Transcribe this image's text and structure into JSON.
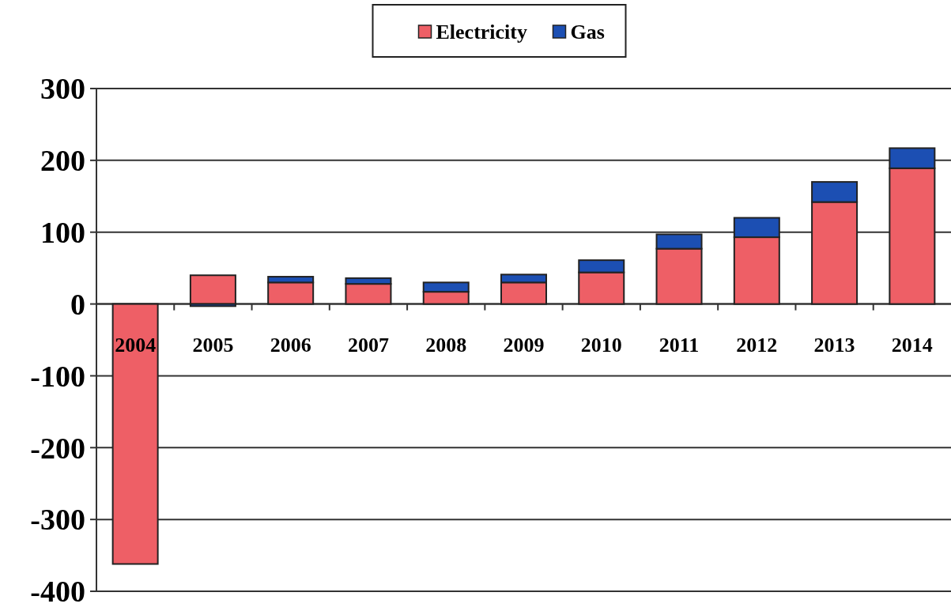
{
  "chart_data": {
    "type": "bar",
    "stacked": true,
    "categories": [
      "2004",
      "2005",
      "2006",
      "2007",
      "2008",
      "2009",
      "2010",
      "2011",
      "2012",
      "2013",
      "2014"
    ],
    "series": [
      {
        "name": "Electricity",
        "color": "#ee5f66",
        "values": [
          -362,
          40,
          30,
          28,
          17,
          30,
          44,
          77,
          93,
          142,
          189
        ]
      },
      {
        "name": "Gas",
        "color": "#1c4fb3",
        "values": [
          0,
          -3,
          8,
          8,
          13,
          11,
          17,
          20,
          27,
          28,
          28
        ]
      }
    ],
    "ylim": [
      -400,
      300
    ],
    "yticks": [
      -400,
      -300,
      -200,
      -100,
      0,
      100,
      200,
      300
    ],
    "grid": "y",
    "legend": "top"
  }
}
